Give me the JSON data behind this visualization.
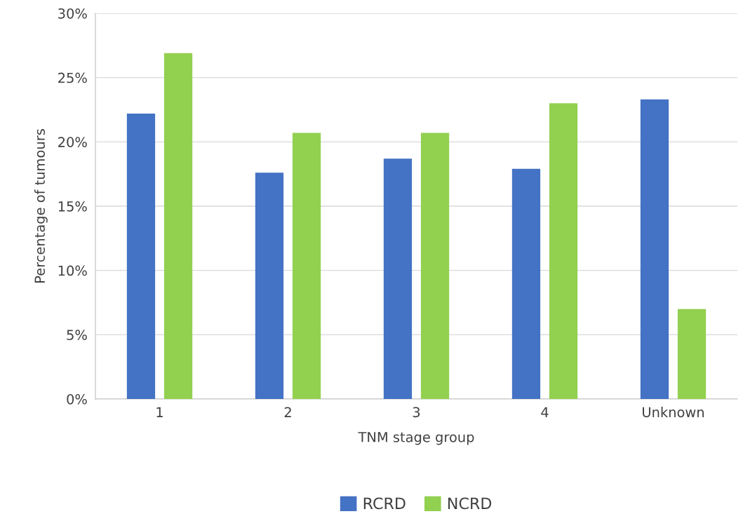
{
  "chart_data": {
    "type": "bar",
    "xlabel": "TNM stage group",
    "ylabel": "Percentage of tumours",
    "categories": [
      "1",
      "2",
      "3",
      "4",
      "Unknown"
    ],
    "series": [
      {
        "name": "RCRD",
        "color": "#4472c4",
        "values": [
          22.2,
          17.6,
          18.7,
          17.9,
          23.3
        ]
      },
      {
        "name": "NCRD",
        "color": "#92d050",
        "values": [
          26.9,
          20.7,
          20.7,
          23.0,
          7.0
        ]
      }
    ],
    "ylim": [
      0,
      30
    ],
    "yticks": [
      {
        "value": 0,
        "label": "0%"
      },
      {
        "value": 5,
        "label": "5%"
      },
      {
        "value": 10,
        "label": "10%"
      },
      {
        "value": 15,
        "label": "15%"
      },
      {
        "value": 20,
        "label": "20%"
      },
      {
        "value": 25,
        "label": "25%"
      },
      {
        "value": 30,
        "label": "30%"
      }
    ],
    "grid": "y",
    "legend": "bottom"
  }
}
